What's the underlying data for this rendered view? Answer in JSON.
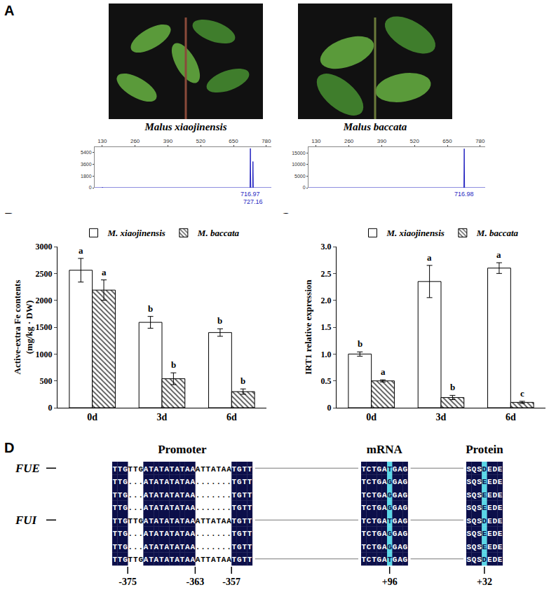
{
  "panel_labels": [
    "A",
    "B",
    "C",
    "D"
  ],
  "photos": [
    {
      "caption": "Malus xiaojinensis"
    },
    {
      "caption": "Malus baccata"
    }
  ],
  "chart_data": [
    {
      "type": "line",
      "x": [
        100,
        130,
        131,
        132,
        700,
        715.5,
        716.97,
        718.5,
        725.5,
        727.16,
        728.8,
        800
      ],
      "values": [
        0,
        0,
        90,
        0,
        0,
        0,
        6000,
        0,
        0,
        4000,
        0,
        0
      ],
      "color": "#1f1fbf",
      "xlim": [
        100,
        800
      ],
      "xticks": [
        130,
        260,
        390,
        520,
        650,
        780
      ],
      "ylim": [
        0,
        6200
      ],
      "yticks": [
        0,
        1800,
        3600,
        5400
      ],
      "grid": false,
      "annotations": [
        {
          "x": 716.97,
          "text": "716.97"
        },
        {
          "x": 727.16,
          "text": "727.16"
        }
      ]
    },
    {
      "type": "line",
      "x": [
        100,
        130,
        131,
        132,
        715.5,
        716.98,
        718.5,
        800
      ],
      "values": [
        0,
        0,
        200,
        0,
        0,
        16800,
        0,
        0
      ],
      "color": "#1f1fbf",
      "xlim": [
        100,
        800
      ],
      "xticks": [
        130,
        260,
        390,
        520,
        650,
        780
      ],
      "ylim": [
        0,
        17500
      ],
      "yticks": [
        0,
        5000,
        10000,
        15000
      ],
      "grid": false,
      "annotations": [
        {
          "x": 716.98,
          "text": "716.98"
        }
      ]
    },
    {
      "type": "bar",
      "categories": [
        "0d",
        "3d",
        "6d"
      ],
      "y_label": [
        "Active-extra Fe contents",
        "(mg/kg · DW)"
      ],
      "series": [
        {
          "name": "M. xiaojinensis",
          "color": "#ffffff",
          "values": [
            2560,
            1590,
            1400
          ],
          "errors": [
            220,
            110,
            70
          ],
          "letters": [
            "a",
            "b",
            "b"
          ]
        },
        {
          "name": "M. baccata",
          "color": "#555555",
          "values": [
            2190,
            540,
            300
          ],
          "errors": [
            190,
            110,
            50
          ],
          "letters": [
            "a",
            "b",
            "b"
          ]
        }
      ],
      "ylim": [
        0,
        3000
      ],
      "yticks": [
        0,
        500,
        1000,
        1500,
        2000,
        2500,
        3000
      ],
      "legend": "top",
      "grid": false
    },
    {
      "type": "bar",
      "categories": [
        "0d",
        "3d",
        "6d"
      ],
      "y_label": [
        "IRT1 relative expression"
      ],
      "series": [
        {
          "name": "M. xiaojinensis",
          "color": "#ffffff",
          "values": [
            1.0,
            2.35,
            2.6
          ],
          "errors": [
            0.04,
            0.3,
            0.1
          ],
          "letters": [
            "b",
            "a",
            "a"
          ]
        },
        {
          "name": "M. baccata",
          "color": "#555555",
          "values": [
            0.5,
            0.19,
            0.1
          ],
          "errors": [
            0.02,
            0.04,
            0.02
          ],
          "letters": [
            "a",
            "b",
            "c"
          ]
        }
      ],
      "ylim": [
        0,
        3
      ],
      "yticks": [
        0,
        0.5,
        {
          "value": 1,
          "label": "1.0"
        },
        1.5,
        {
          "value": 2,
          "label": "2.0"
        },
        2.5,
        {
          "value": 3,
          "label": "3.0"
        }
      ],
      "legend": "top",
      "grid": false
    }
  ],
  "alignment": {
    "row_labels": [
      {
        "row": 0,
        "text": "FUE"
      },
      {
        "row": 4,
        "text": "FUI"
      }
    ],
    "sections": [
      {
        "title": "Promoter",
        "rows": [
          "TTGTTGATATATATAAATTATAATGTT",
          "TTG...ATATATATAA.......TGTT",
          "TTG...ATATATATAA.......TGTT",
          "TTG...ATATATATAA.......TGTT",
          "TTGTTGATATATATAAATTATAATGTT",
          "TTG...ATATATATAA.......TGTT",
          "TTG...ATATATATAA.......TGTT",
          "TTGTTGATATATATAAATTATAATGTT"
        ],
        "positions": [
          "-375",
          "-363",
          "-357"
        ]
      },
      {
        "title": "mRNA",
        "rows": [
          "TCTGATGAG",
          "TCTGAGGAG",
          "TCTGAGGAG",
          "TCTGAGGAG",
          "TCTGATGAG",
          "TCTGAGGAG",
          "TCTGAGGAG",
          "TCTGATGAG"
        ],
        "positions": [
          "+96"
        ]
      },
      {
        "title": "Protein",
        "rows": [
          "SQSDEDE",
          "SQSEEDE",
          "SQSEEDE",
          "SQSEEDE",
          "SQSDEDE",
          "SQSEEDE",
          "SQSEEDE",
          "SQSDEDE"
        ],
        "positions": [
          "+32"
        ]
      }
    ]
  }
}
